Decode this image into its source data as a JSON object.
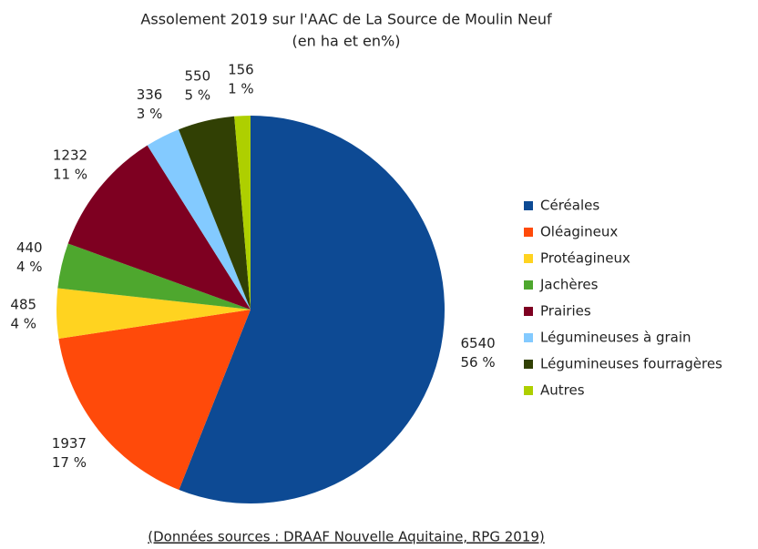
{
  "chart_data": {
    "type": "pie",
    "title": "Assolement 2019 sur l'AAC de La Source de Moulin Neuf",
    "subtitle": "(en ha et en%)",
    "categories": [
      "Céréales",
      "Oléagineux",
      "Protéagineux",
      "Jachères",
      "Prairies",
      "Légumineuses à grain",
      "Légumineuses fourragères",
      "Autres"
    ],
    "values": [
      6540,
      1937,
      485,
      440,
      1232,
      336,
      550,
      156
    ],
    "percent_labels": [
      "56 %",
      "17 %",
      "4 %",
      "4 %",
      "11 %",
      "3 %",
      "5 %",
      "1 %"
    ],
    "colors": [
      "#0d4a94",
      "#ff4a0a",
      "#ffd320",
      "#4ea72e",
      "#7e0021",
      "#83caff",
      "#314004",
      "#aecf00"
    ],
    "legend": "right",
    "source": "(Données sources : DRAAF Nouvelle Aquitaine, RPG 2019)"
  }
}
